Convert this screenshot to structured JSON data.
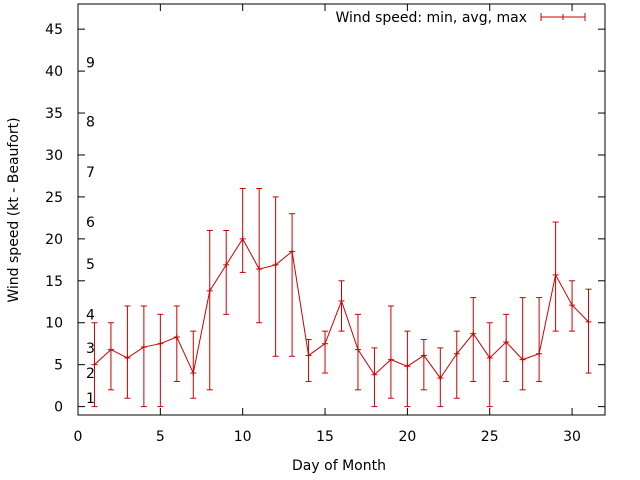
{
  "chart_data": {
    "type": "line",
    "title": "",
    "xlabel": "Day of Month",
    "ylabel": "Wind speed (kt - Beaufort)",
    "xlim": [
      0,
      32
    ],
    "ylim": [
      -1,
      48
    ],
    "xticks": [
      0,
      5,
      10,
      15,
      20,
      25,
      30
    ],
    "yticks": [
      0,
      5,
      10,
      15,
      20,
      25,
      30,
      35,
      40,
      45
    ],
    "grid": false,
    "legend_position": "top-right",
    "series": [
      {
        "name": "Wind speed: min, avg, max",
        "color": "#cc0000",
        "x": [
          1,
          2,
          3,
          4,
          5,
          6,
          7,
          8,
          9,
          10,
          11,
          12,
          13,
          14,
          15,
          16,
          17,
          18,
          19,
          20,
          21,
          22,
          23,
          24,
          25,
          26,
          27,
          28,
          29,
          30,
          31
        ],
        "avg": [
          5,
          6.8,
          5.8,
          7.1,
          7.5,
          8.3,
          4,
          13.8,
          16.9,
          20,
          16.4,
          16.9,
          18.5,
          6.1,
          7.5,
          12.6,
          6.8,
          3.8,
          5.6,
          4.8,
          6.1,
          3.4,
          6.3,
          8.7,
          5.8,
          7.7,
          5.6,
          6.3,
          15.7,
          12.1,
          10.1
        ],
        "min": [
          0,
          2,
          1,
          0,
          0,
          3,
          1,
          2,
          11,
          16,
          10,
          6,
          6,
          3,
          4,
          9,
          2,
          0,
          1,
          0,
          2,
          0,
          1,
          3,
          0,
          3,
          2,
          3,
          9,
          9,
          4
        ],
        "max": [
          10,
          10,
          12,
          12,
          11,
          12,
          9,
          21,
          21,
          26,
          26,
          25,
          23,
          8,
          9,
          15,
          11,
          7,
          12,
          9,
          8,
          7,
          9,
          13,
          10,
          11,
          13,
          13,
          22,
          15,
          14
        ]
      }
    ],
    "beaufort_labels": [
      {
        "label": "1",
        "y": 1
      },
      {
        "label": "2",
        "y": 4
      },
      {
        "label": "3",
        "y": 7
      },
      {
        "label": "4",
        "y": 11
      },
      {
        "label": "5",
        "y": 17
      },
      {
        "label": "6",
        "y": 22
      },
      {
        "label": "7",
        "y": 28
      },
      {
        "label": "8",
        "y": 34
      },
      {
        "label": "9",
        "y": 41
      }
    ]
  }
}
